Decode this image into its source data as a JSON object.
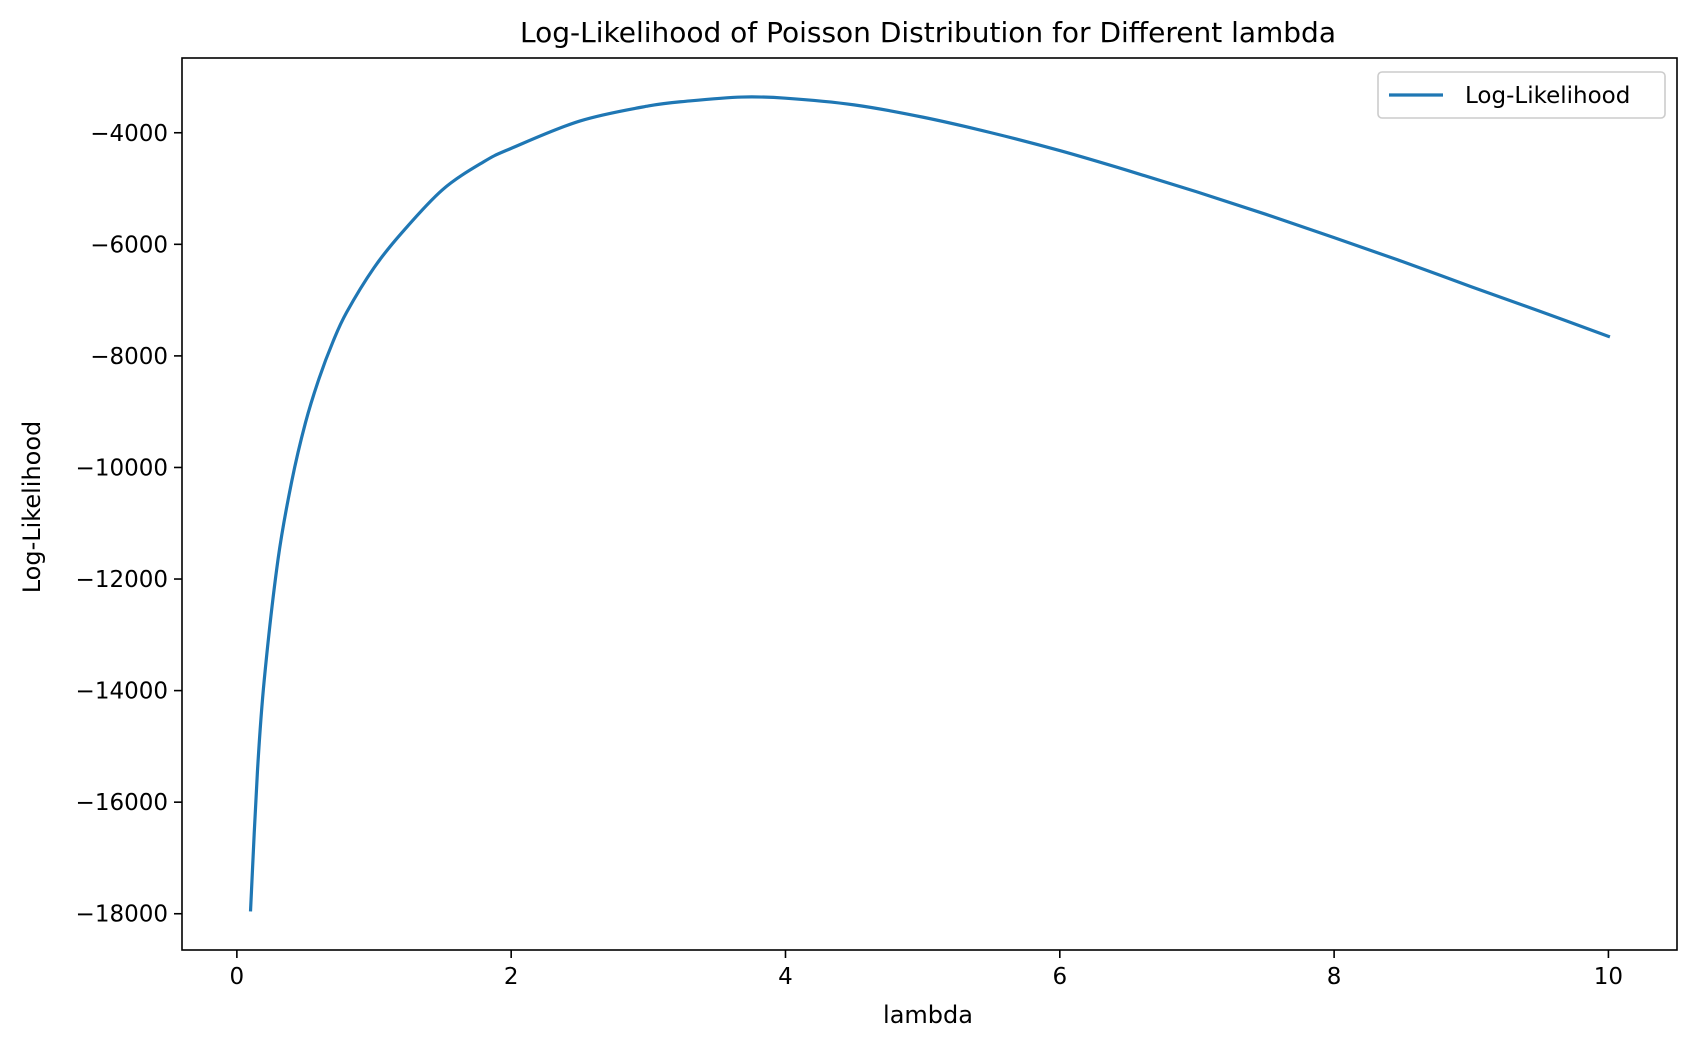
{
  "chart_data": {
    "type": "line",
    "title": "Log-Likelihood of Poisson Distribution for Different lambda",
    "xlabel": "lambda",
    "ylabel": "Log-Likelihood",
    "xlim": [
      -0.4,
      10.5
    ],
    "ylim": [
      -18650,
      -2660
    ],
    "xticks": [
      0,
      2,
      4,
      6,
      8,
      10
    ],
    "yticks": [
      -18000,
      -16000,
      -14000,
      -12000,
      -10000,
      -8000,
      -6000,
      -4000
    ],
    "xtick_labels": [
      "0",
      "2",
      "4",
      "6",
      "8",
      "10"
    ],
    "ytick_labels": [
      "−18000",
      "−16000",
      "−14000",
      "−12000",
      "−10000",
      "−8000",
      "−6000",
      "−4000"
    ],
    "grid": false,
    "legend_position": "top-right",
    "series": [
      {
        "name": "Log-Likelihood",
        "color": "#1f77b4",
        "x": [
          0.1,
          0.15,
          0.2,
          0.3,
          0.4,
          0.5,
          0.6,
          0.7,
          0.8,
          1.0,
          1.2,
          1.5,
          1.8,
          2.0,
          2.5,
          3.0,
          3.3,
          3.68,
          4.0,
          4.5,
          5.0,
          5.5,
          6.0,
          6.5,
          7.0,
          7.5,
          8.0,
          8.5,
          9.0,
          9.5,
          10.0
        ],
        "y": [
          -17930,
          -15450,
          -13800,
          -11650,
          -10250,
          -9200,
          -8400,
          -7750,
          -7220,
          -6420,
          -5800,
          -5020,
          -4520,
          -4280,
          -3790,
          -3520,
          -3430,
          -3360,
          -3380,
          -3500,
          -3720,
          -4000,
          -4320,
          -4680,
          -5060,
          -5460,
          -5880,
          -6310,
          -6760,
          -7200,
          -7650
        ]
      }
    ]
  }
}
